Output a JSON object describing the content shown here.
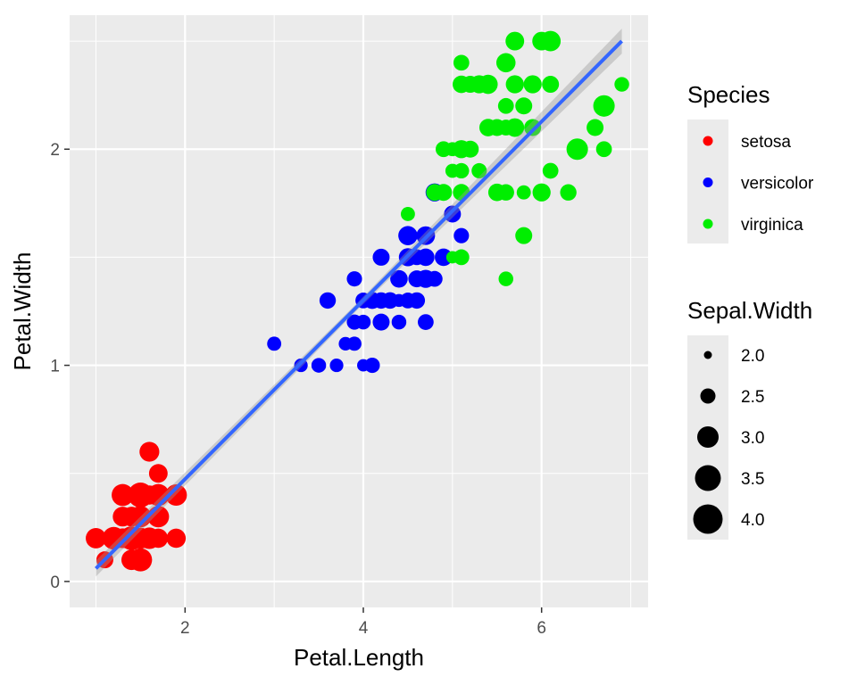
{
  "chart_data": {
    "type": "scatter",
    "xlabel": "Petal.Length",
    "ylabel": "Petal.Width",
    "xlim": [
      0.705,
      7.195
    ],
    "ylim": [
      -0.12,
      2.62
    ],
    "x_ticks": [
      2,
      4,
      6
    ],
    "y_ticks": [
      0,
      1,
      2
    ],
    "grid": true,
    "legend_placement": "right",
    "trend_line": {
      "method": "lm",
      "from": [
        1.0,
        0.06
      ],
      "to": [
        6.9,
        2.5
      ],
      "se_band": true,
      "color": "#3366ff"
    },
    "color_legend": {
      "title": "Species",
      "entries": [
        {
          "label": "setosa",
          "color": "#ff0000"
        },
        {
          "label": "versicolor",
          "color": "#0000ff"
        },
        {
          "label": "virginica",
          "color": "#00ee00"
        }
      ]
    },
    "size_legend": {
      "title": "Sepal.Width",
      "values": [
        2.0,
        2.5,
        3.0,
        3.5,
        4.0
      ],
      "labels": [
        "2.0",
        "2.5",
        "3.0",
        "3.5",
        "4.0"
      ]
    },
    "series": [
      {
        "name": "setosa",
        "color": "#ff0000",
        "points": [
          [
            1.4,
            0.2,
            3.5
          ],
          [
            1.4,
            0.2,
            3.0
          ],
          [
            1.3,
            0.2,
            3.2
          ],
          [
            1.5,
            0.2,
            3.1
          ],
          [
            1.4,
            0.2,
            3.6
          ],
          [
            1.7,
            0.4,
            3.9
          ],
          [
            1.4,
            0.3,
            3.4
          ],
          [
            1.5,
            0.2,
            3.4
          ],
          [
            1.4,
            0.2,
            2.9
          ],
          [
            1.5,
            0.1,
            3.1
          ],
          [
            1.5,
            0.2,
            3.7
          ],
          [
            1.6,
            0.2,
            3.4
          ],
          [
            1.4,
            0.1,
            3.0
          ],
          [
            1.1,
            0.1,
            3.0
          ],
          [
            1.2,
            0.2,
            4.0
          ],
          [
            1.5,
            0.4,
            4.4
          ],
          [
            1.3,
            0.4,
            3.9
          ],
          [
            1.4,
            0.3,
            3.5
          ],
          [
            1.7,
            0.3,
            3.8
          ],
          [
            1.5,
            0.3,
            3.8
          ],
          [
            1.7,
            0.2,
            3.4
          ],
          [
            1.5,
            0.4,
            3.7
          ],
          [
            1.0,
            0.2,
            3.6
          ],
          [
            1.7,
            0.5,
            3.3
          ],
          [
            1.9,
            0.2,
            3.4
          ],
          [
            1.6,
            0.2,
            3.0
          ],
          [
            1.6,
            0.4,
            3.4
          ],
          [
            1.5,
            0.2,
            3.5
          ],
          [
            1.4,
            0.2,
            3.4
          ],
          [
            1.6,
            0.2,
            3.2
          ],
          [
            1.6,
            0.2,
            3.1
          ],
          [
            1.5,
            0.4,
            3.4
          ],
          [
            1.5,
            0.1,
            4.1
          ],
          [
            1.4,
            0.2,
            4.2
          ],
          [
            1.5,
            0.2,
            3.1
          ],
          [
            1.2,
            0.2,
            3.2
          ],
          [
            1.3,
            0.2,
            3.5
          ],
          [
            1.4,
            0.1,
            3.6
          ],
          [
            1.3,
            0.2,
            3.0
          ],
          [
            1.5,
            0.2,
            3.4
          ],
          [
            1.3,
            0.3,
            3.5
          ],
          [
            1.3,
            0.3,
            2.3
          ],
          [
            1.3,
            0.2,
            3.2
          ],
          [
            1.6,
            0.6,
            3.5
          ],
          [
            1.9,
            0.4,
            3.8
          ],
          [
            1.4,
            0.3,
            3.0
          ],
          [
            1.6,
            0.2,
            3.8
          ],
          [
            1.4,
            0.2,
            3.2
          ],
          [
            1.5,
            0.2,
            3.7
          ],
          [
            1.4,
            0.2,
            3.3
          ]
        ]
      },
      {
        "name": "versicolor",
        "color": "#0000ff",
        "points": [
          [
            4.7,
            1.4,
            3.2
          ],
          [
            4.5,
            1.5,
            3.2
          ],
          [
            4.9,
            1.5,
            3.1
          ],
          [
            4.0,
            1.3,
            2.3
          ],
          [
            4.6,
            1.5,
            2.8
          ],
          [
            4.5,
            1.3,
            2.8
          ],
          [
            4.7,
            1.6,
            3.3
          ],
          [
            3.3,
            1.0,
            2.4
          ],
          [
            4.6,
            1.3,
            2.9
          ],
          [
            3.9,
            1.4,
            2.7
          ],
          [
            3.5,
            1.0,
            2.0
          ],
          [
            4.2,
            1.5,
            3.0
          ],
          [
            4.0,
            1.0,
            2.2
          ],
          [
            4.7,
            1.4,
            2.9
          ],
          [
            3.6,
            1.3,
            2.9
          ],
          [
            4.4,
            1.4,
            3.1
          ],
          [
            4.5,
            1.5,
            3.0
          ],
          [
            4.1,
            1.0,
            2.7
          ],
          [
            4.5,
            1.5,
            2.2
          ],
          [
            3.9,
            1.1,
            2.5
          ],
          [
            4.8,
            1.8,
            3.2
          ],
          [
            4.0,
            1.3,
            2.8
          ],
          [
            4.9,
            1.5,
            2.5
          ],
          [
            4.7,
            1.2,
            2.8
          ],
          [
            4.3,
            1.3,
            2.9
          ],
          [
            4.4,
            1.4,
            3.0
          ],
          [
            4.8,
            1.4,
            2.8
          ],
          [
            5.0,
            1.7,
            3.0
          ],
          [
            4.5,
            1.5,
            2.9
          ],
          [
            3.5,
            1.0,
            2.6
          ],
          [
            3.8,
            1.1,
            2.4
          ],
          [
            3.7,
            1.0,
            2.4
          ],
          [
            3.9,
            1.2,
            2.7
          ],
          [
            5.1,
            1.6,
            2.7
          ],
          [
            4.5,
            1.5,
            3.0
          ],
          [
            4.5,
            1.6,
            3.4
          ],
          [
            4.7,
            1.5,
            3.1
          ],
          [
            4.4,
            1.3,
            2.3
          ],
          [
            4.1,
            1.3,
            3.0
          ],
          [
            4.0,
            1.3,
            2.5
          ],
          [
            4.4,
            1.2,
            2.6
          ],
          [
            4.6,
            1.4,
            3.0
          ],
          [
            4.0,
            1.2,
            2.6
          ],
          [
            3.3,
            1.0,
            2.3
          ],
          [
            4.2,
            1.3,
            2.7
          ],
          [
            4.2,
            1.2,
            3.0
          ],
          [
            4.2,
            1.3,
            2.9
          ],
          [
            4.3,
            1.3,
            2.9
          ],
          [
            3.0,
            1.1,
            2.5
          ],
          [
            4.1,
            1.3,
            2.8
          ]
        ]
      },
      {
        "name": "virginica",
        "color": "#00ee00",
        "points": [
          [
            6.0,
            2.5,
            3.3
          ],
          [
            5.1,
            1.9,
            2.7
          ],
          [
            5.9,
            2.1,
            3.0
          ],
          [
            5.6,
            1.8,
            2.9
          ],
          [
            5.8,
            2.2,
            3.0
          ],
          [
            6.6,
            2.1,
            3.0
          ],
          [
            4.5,
            1.7,
            2.5
          ],
          [
            6.3,
            1.8,
            2.9
          ],
          [
            5.8,
            1.8,
            2.5
          ],
          [
            6.1,
            2.5,
            3.6
          ],
          [
            5.1,
            2.0,
            3.2
          ],
          [
            5.3,
            1.9,
            2.7
          ],
          [
            5.5,
            2.1,
            3.0
          ],
          [
            5.0,
            2.0,
            2.5
          ],
          [
            5.1,
            2.4,
            2.8
          ],
          [
            5.3,
            2.3,
            3.2
          ],
          [
            5.5,
            1.8,
            3.0
          ],
          [
            6.7,
            2.2,
            3.8
          ],
          [
            6.9,
            2.3,
            2.6
          ],
          [
            5.0,
            1.5,
            2.2
          ],
          [
            5.7,
            2.3,
            3.2
          ],
          [
            4.9,
            2.0,
            2.8
          ],
          [
            6.7,
            2.0,
            2.8
          ],
          [
            4.9,
            1.8,
            2.7
          ],
          [
            5.7,
            2.1,
            3.3
          ],
          [
            6.0,
            1.8,
            3.2
          ],
          [
            4.8,
            1.8,
            2.8
          ],
          [
            4.9,
            1.8,
            3.0
          ],
          [
            5.6,
            2.1,
            2.8
          ],
          [
            5.8,
            1.6,
            3.0
          ],
          [
            6.1,
            1.9,
            2.8
          ],
          [
            6.4,
            2.0,
            3.8
          ],
          [
            5.6,
            2.2,
            2.8
          ],
          [
            5.1,
            1.5,
            2.8
          ],
          [
            5.6,
            1.4,
            2.6
          ],
          [
            6.1,
            2.3,
            3.0
          ],
          [
            5.6,
            2.4,
            3.4
          ],
          [
            5.5,
            1.8,
            3.1
          ],
          [
            4.8,
            1.8,
            3.0
          ],
          [
            5.4,
            2.1,
            3.1
          ],
          [
            5.6,
            2.4,
            3.1
          ],
          [
            5.1,
            2.3,
            3.1
          ],
          [
            5.1,
            1.9,
            2.7
          ],
          [
            5.9,
            2.3,
            3.2
          ],
          [
            5.7,
            2.5,
            3.3
          ],
          [
            5.2,
            2.3,
            3.0
          ],
          [
            5.0,
            1.9,
            2.5
          ],
          [
            5.2,
            2.0,
            3.0
          ],
          [
            5.4,
            2.3,
            3.4
          ],
          [
            5.1,
            1.8,
            3.0
          ]
        ]
      }
    ]
  }
}
